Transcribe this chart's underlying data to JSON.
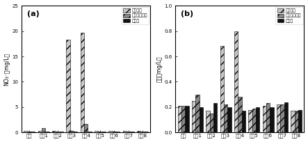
{
  "categories": [
    "进水",
    "出水1",
    "出水2",
    "出水3",
    "出水4",
    "出水5",
    "出水6",
    "出水7",
    "出水8"
  ],
  "panel_a": {
    "label": "(a)",
    "ylabel": "NO₃⁻（mg/L）",
    "ylim": [
      0,
      25
    ],
    "yticks": [
      0,
      5,
      10,
      15,
      20,
      25
    ],
    "series1": [
      0.4,
      0.3,
      0.3,
      18.3,
      19.7,
      0.3,
      0.3,
      0.3,
      0.3
    ],
    "series2": [
      0.2,
      0.9,
      0.2,
      0.4,
      1.7,
      0.2,
      0.2,
      0.2,
      0.2
    ],
    "series3": [
      0.15,
      0.15,
      0.15,
      0.2,
      0.2,
      0.15,
      0.15,
      0.15,
      0.2
    ]
  },
  "panel_b": {
    "label": "(b)",
    "ylabel": "总磷（mg/L）",
    "ylim": [
      0,
      1.0
    ],
    "yticks": [
      0.0,
      0.2,
      0.4,
      0.6,
      0.8,
      1.0
    ],
    "series1": [
      0.21,
      0.25,
      0.17,
      0.68,
      0.8,
      0.18,
      0.21,
      0.22,
      0.17
    ],
    "series2": [
      0.21,
      0.3,
      0.15,
      0.22,
      0.28,
      0.19,
      0.23,
      0.22,
      0.17
    ],
    "series3": [
      0.21,
      0.2,
      0.23,
      0.2,
      0.17,
      0.2,
      0.2,
      0.24,
      0.18
    ]
  },
  "legend_labels": [
    "淡粉庨水",
    "改性淡粉庨水",
    "乙酸钓"
  ],
  "color1": "#c8c8c8",
  "color2": "#888888",
  "color3": "#111111",
  "hatch1": "///",
  "hatch2": "///",
  "hatch3": ""
}
